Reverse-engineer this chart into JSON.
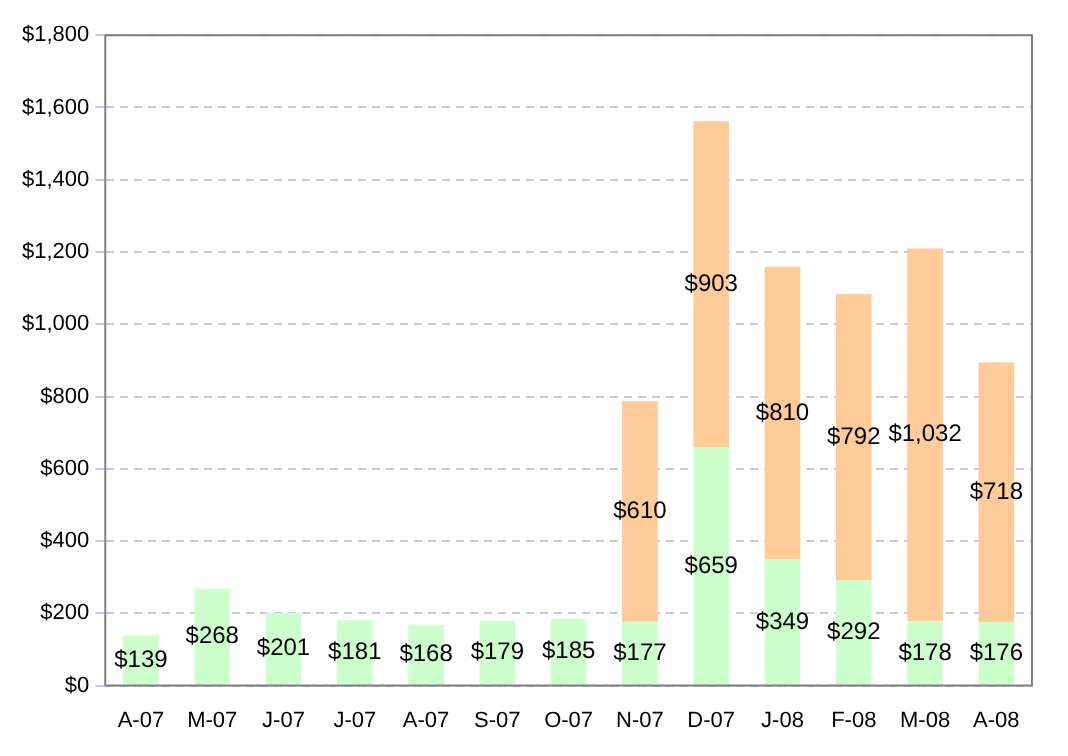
{
  "chart_data": {
    "type": "bar",
    "stacked": true,
    "grid": "y",
    "legend": false,
    "categories": [
      "A-07",
      "M-07",
      "J-07",
      "J-07",
      "A-07",
      "S-07",
      "O-07",
      "N-07",
      "D-07",
      "J-08",
      "F-08",
      "M-08",
      "A-08"
    ],
    "series": [
      {
        "color": "#ccffcc",
        "values": [
          139,
          268,
          201,
          181,
          168,
          179,
          185,
          177,
          659,
          349,
          292,
          178,
          176
        ],
        "value_labels": [
          "$139",
          "$268",
          "$201",
          "$181",
          "$168",
          "$179",
          "$185",
          "$177",
          "$659",
          "$349",
          "$292",
          "$178",
          "$176"
        ]
      },
      {
        "color": "#ffcc99",
        "values": [
          null,
          null,
          null,
          null,
          null,
          null,
          null,
          610,
          903,
          810,
          792,
          1032,
          718
        ],
        "value_labels": [
          null,
          null,
          null,
          null,
          null,
          null,
          null,
          "$610",
          "$903",
          "$810",
          "$792",
          "$1,032",
          "$718"
        ]
      }
    ],
    "ylim": [
      0,
      1800
    ],
    "yticks": [
      {
        "value": 0,
        "label": "$0"
      },
      {
        "value": 200,
        "label": "$200"
      },
      {
        "value": 400,
        "label": "$400"
      },
      {
        "value": 600,
        "label": "$600"
      },
      {
        "value": 800,
        "label": "$800"
      },
      {
        "value": 1000,
        "label": "$1,000"
      },
      {
        "value": 1200,
        "label": "$1,200"
      },
      {
        "value": 1400,
        "label": "$1,400"
      },
      {
        "value": 1600,
        "label": "$1,600"
      },
      {
        "value": 1800,
        "label": "$1,800"
      }
    ]
  }
}
